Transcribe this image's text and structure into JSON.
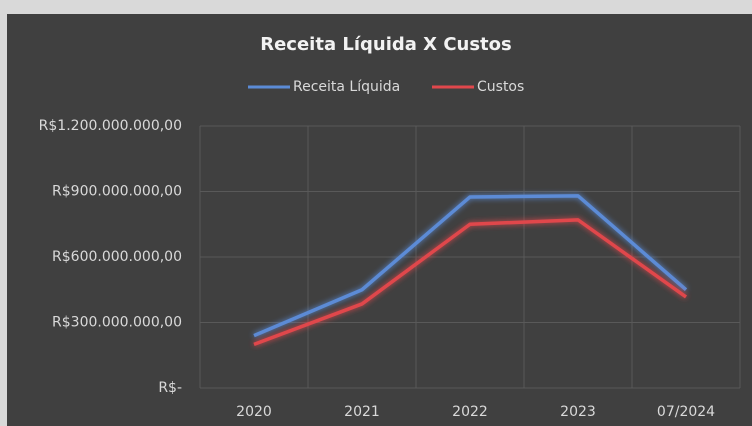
{
  "chart_data": {
    "type": "line",
    "title": "Receita Líquida X Custos",
    "categories": [
      "2020",
      "2021",
      "2022",
      "2023",
      "07/2024"
    ],
    "series": [
      {
        "name": "Receita Líquida",
        "color": "#5b8bd6",
        "values": [
          240000000,
          450000000,
          875000000,
          880000000,
          450000000
        ]
      },
      {
        "name": "Custos",
        "color": "#e0474c",
        "values": [
          200000000,
          385000000,
          750000000,
          770000000,
          417000000
        ]
      }
    ],
    "ylim": [
      0,
      1200000000
    ],
    "yticks": [
      {
        "value": 0,
        "label": "R$-"
      },
      {
        "value": 300000000,
        "label": "R$300.000.000,00"
      },
      {
        "value": 600000000,
        "label": "R$600.000.000,00"
      },
      {
        "value": 900000000,
        "label": "R$900.000.000,00"
      },
      {
        "value": 1200000000,
        "label": "R$1.200.000.000,00"
      }
    ],
    "grid": true,
    "legend": "top"
  }
}
